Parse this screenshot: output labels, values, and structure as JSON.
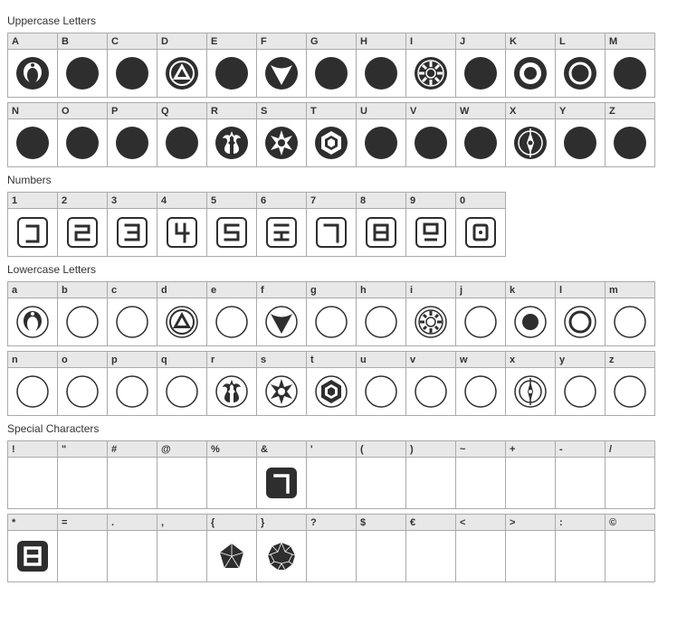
{
  "palette": {
    "dark": "#2e2e2e",
    "mid": "#666666",
    "light": "#ffffff",
    "header_bg": "#e8e8e8",
    "border": "#aaaaaa"
  },
  "sections": [
    {
      "title": "Uppercase Letters",
      "rows": 2,
      "per_row": 13,
      "cells": [
        {
          "label": "A",
          "glyph": "jedi-dark"
        },
        {
          "label": "B",
          "glyph": "disc-dark"
        },
        {
          "label": "C",
          "glyph": "disc-dark"
        },
        {
          "label": "D",
          "glyph": "triangle-ring-dark"
        },
        {
          "label": "E",
          "glyph": "disc-dark"
        },
        {
          "label": "F",
          "glyph": "tri-cut-dark"
        },
        {
          "label": "G",
          "glyph": "disc-dark"
        },
        {
          "label": "H",
          "glyph": "disc-dark"
        },
        {
          "label": "I",
          "glyph": "imperial-dark"
        },
        {
          "label": "J",
          "glyph": "disc-dark"
        },
        {
          "label": "K",
          "glyph": "ring-filled-dark"
        },
        {
          "label": "L",
          "glyph": "ring-dark"
        },
        {
          "label": "M",
          "glyph": "disc-dark"
        },
        {
          "label": "N",
          "glyph": "disc-dark"
        },
        {
          "label": "O",
          "glyph": "disc-dark"
        },
        {
          "label": "P",
          "glyph": "disc-dark"
        },
        {
          "label": "Q",
          "glyph": "disc-dark"
        },
        {
          "label": "R",
          "glyph": "rebel-dark"
        },
        {
          "label": "S",
          "glyph": "burst-dark"
        },
        {
          "label": "T",
          "glyph": "hex-dark"
        },
        {
          "label": "U",
          "glyph": "disc-dark"
        },
        {
          "label": "V",
          "glyph": "disc-dark"
        },
        {
          "label": "W",
          "glyph": "disc-dark"
        },
        {
          "label": "X",
          "glyph": "compass-dark"
        },
        {
          "label": "Y",
          "glyph": "disc-dark"
        },
        {
          "label": "Z",
          "glyph": "disc-dark"
        }
      ]
    },
    {
      "title": "Numbers",
      "rows": 1,
      "per_row": 10,
      "cells": [
        {
          "label": "1",
          "glyph": "num-1"
        },
        {
          "label": "2",
          "glyph": "num-2"
        },
        {
          "label": "3",
          "glyph": "num-3"
        },
        {
          "label": "4",
          "glyph": "num-4"
        },
        {
          "label": "5",
          "glyph": "num-5"
        },
        {
          "label": "6",
          "glyph": "num-6"
        },
        {
          "label": "7",
          "glyph": "num-7"
        },
        {
          "label": "8",
          "glyph": "num-8"
        },
        {
          "label": "9",
          "glyph": "num-9"
        },
        {
          "label": "0",
          "glyph": "num-0"
        }
      ]
    },
    {
      "title": "Lowercase Letters",
      "rows": 2,
      "per_row": 13,
      "cells": [
        {
          "label": "a",
          "glyph": "jedi-light"
        },
        {
          "label": "b",
          "glyph": "circle-light"
        },
        {
          "label": "c",
          "glyph": "circle-light"
        },
        {
          "label": "d",
          "glyph": "triangle-ring-light"
        },
        {
          "label": "e",
          "glyph": "circle-light"
        },
        {
          "label": "f",
          "glyph": "tri-cut-light"
        },
        {
          "label": "g",
          "glyph": "circle-light"
        },
        {
          "label": "h",
          "glyph": "circle-light"
        },
        {
          "label": "i",
          "glyph": "imperial-light"
        },
        {
          "label": "j",
          "glyph": "circle-light"
        },
        {
          "label": "k",
          "glyph": "ring-filled-light"
        },
        {
          "label": "l",
          "glyph": "ring-light"
        },
        {
          "label": "m",
          "glyph": "circle-light"
        },
        {
          "label": "n",
          "glyph": "circle-light"
        },
        {
          "label": "o",
          "glyph": "circle-light"
        },
        {
          "label": "p",
          "glyph": "circle-light"
        },
        {
          "label": "q",
          "glyph": "circle-light"
        },
        {
          "label": "r",
          "glyph": "rebel-light"
        },
        {
          "label": "s",
          "glyph": "burst-light"
        },
        {
          "label": "t",
          "glyph": "hex-light"
        },
        {
          "label": "u",
          "glyph": "circle-light"
        },
        {
          "label": "v",
          "glyph": "circle-light"
        },
        {
          "label": "w",
          "glyph": "circle-light"
        },
        {
          "label": "x",
          "glyph": "compass-light"
        },
        {
          "label": "y",
          "glyph": "circle-light"
        },
        {
          "label": "z",
          "glyph": "circle-light"
        }
      ]
    },
    {
      "title": "Special Characters",
      "rows": 2,
      "per_row": 13,
      "taller": true,
      "cells": [
        {
          "label": "!",
          "glyph": "empty"
        },
        {
          "label": "\"",
          "glyph": "empty"
        },
        {
          "label": "#",
          "glyph": "empty"
        },
        {
          "label": "@",
          "glyph": "empty"
        },
        {
          "label": "%",
          "glyph": "empty"
        },
        {
          "label": "&",
          "glyph": "square-7"
        },
        {
          "label": "'",
          "glyph": "empty"
        },
        {
          "label": "(",
          "glyph": "empty"
        },
        {
          "label": ")",
          "glyph": "empty"
        },
        {
          "label": "~",
          "glyph": "empty"
        },
        {
          "label": "+",
          "glyph": "empty"
        },
        {
          "label": "-",
          "glyph": "empty"
        },
        {
          "label": "/",
          "glyph": "empty"
        },
        {
          "label": "*",
          "glyph": "square-8"
        },
        {
          "label": "=",
          "glyph": "empty"
        },
        {
          "label": ".",
          "glyph": "empty"
        },
        {
          "label": ",",
          "glyph": "empty"
        },
        {
          "label": "{",
          "glyph": "poly-oct"
        },
        {
          "label": "}",
          "glyph": "poly-dodec"
        },
        {
          "label": "?",
          "glyph": "empty"
        },
        {
          "label": "$",
          "glyph": "empty"
        },
        {
          "label": "€",
          "glyph": "empty"
        },
        {
          "label": "<",
          "glyph": "empty"
        },
        {
          "label": ">",
          "glyph": "empty"
        },
        {
          "label": ":",
          "glyph": "empty"
        },
        {
          "label": "©",
          "glyph": "empty"
        }
      ]
    }
  ]
}
